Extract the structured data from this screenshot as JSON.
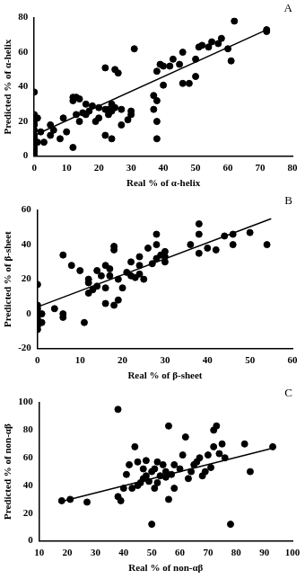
{
  "chart_data": [
    {
      "type": "scatter",
      "title": "A",
      "x_label": "Real % of α-helix",
      "y_label": "Predicted % of α-helix",
      "xlim": [
        0,
        80
      ],
      "ylim": [
        0,
        80
      ],
      "xticks": [
        0,
        10,
        20,
        30,
        40,
        50,
        60,
        70,
        80
      ],
      "yticks": [
        0,
        20,
        40,
        60,
        80
      ],
      "grid": false,
      "series": [
        {
          "type": "scatter",
          "color": "#000000",
          "marker": "circle",
          "x": [
            0,
            0,
            0,
            0,
            0,
            0,
            0,
            0,
            0,
            0,
            0,
            0,
            1,
            1,
            2,
            3,
            5,
            5,
            6,
            8,
            9,
            10,
            12,
            12,
            12,
            13,
            13,
            14,
            14,
            15,
            16,
            16,
            17,
            18,
            19,
            20,
            20,
            22,
            22,
            22,
            23,
            23,
            24,
            24,
            24,
            25,
            25,
            26,
            27,
            27,
            29,
            30,
            30,
            31,
            37,
            37,
            38,
            38,
            38,
            38,
            39,
            40,
            40,
            42,
            43,
            45,
            46,
            46,
            48,
            50,
            50,
            51,
            52,
            54,
            55,
            57,
            58,
            60,
            61,
            62,
            72,
            72
          ],
          "values": [
            37,
            24,
            22,
            20,
            18,
            15,
            12,
            10,
            8,
            5,
            3,
            1,
            22,
            8,
            14,
            8,
            18,
            12,
            15,
            10,
            22,
            14,
            5,
            32,
            34,
            34,
            24,
            33,
            20,
            25,
            24,
            30,
            26,
            29,
            20,
            22,
            28,
            51,
            27,
            12,
            24,
            27,
            10,
            26,
            30,
            50,
            28,
            48,
            18,
            27,
            21,
            26,
            24,
            62,
            35,
            27,
            49,
            20,
            10,
            32,
            53,
            41,
            52,
            52,
            56,
            53,
            60,
            42,
            42,
            46,
            56,
            63,
            64,
            63,
            66,
            65,
            68,
            62,
            55,
            78,
            73,
            72
          ]
        },
        {
          "type": "line",
          "color": "#000000",
          "line_style": "solid",
          "x": [
            0,
            72
          ],
          "values": [
            12,
            73
          ]
        }
      ]
    },
    {
      "type": "scatter",
      "title": "B",
      "x_label": "Real % of β-sheet",
      "y_label": "Predicted % of β-sheet",
      "xlim": [
        0,
        60
      ],
      "ylim": [
        -20,
        60
      ],
      "xticks": [
        0,
        10,
        20,
        30,
        40,
        50,
        60
      ],
      "yticks": [
        -20,
        0,
        20,
        40,
        60
      ],
      "grid": false,
      "series": [
        {
          "type": "scatter",
          "color": "#000000",
          "marker": "circle",
          "x": [
            0,
            0,
            0,
            0,
            0,
            0,
            0,
            0,
            0,
            1,
            1,
            4,
            6,
            6,
            6,
            8,
            10,
            11,
            12,
            12,
            12,
            13,
            14,
            14,
            15,
            16,
            16,
            16,
            17,
            17,
            18,
            18,
            18,
            19,
            19,
            20,
            21,
            22,
            22,
            23,
            24,
            24,
            24,
            25,
            26,
            27,
            28,
            28,
            28,
            29,
            30,
            30,
            30,
            36,
            38,
            38,
            38,
            40,
            42,
            44,
            46,
            46,
            50,
            54
          ],
          "values": [
            17,
            5,
            3,
            1,
            -1,
            -3,
            -5,
            -7,
            -9,
            0,
            -5,
            3,
            34,
            0,
            -2,
            28,
            25,
            -5,
            20,
            18,
            12,
            14,
            25,
            16,
            22,
            28,
            15,
            6,
            26,
            22,
            39,
            37,
            5,
            20,
            8,
            15,
            24,
            30,
            22,
            21,
            33,
            28,
            23,
            20,
            38,
            29,
            32,
            46,
            40,
            34,
            36,
            33,
            30,
            40,
            46,
            35,
            52,
            38,
            37,
            45,
            46,
            40,
            47,
            40
          ]
        },
        {
          "type": "line",
          "color": "#000000",
          "line_style": "solid",
          "x": [
            0,
            55
          ],
          "values": [
            4,
            55
          ]
        }
      ]
    },
    {
      "type": "scatter",
      "title": "C",
      "x_label": "Real % of non-αβ",
      "y_label": "Predicted % of non-αβ",
      "xlim": [
        10,
        100
      ],
      "ylim": [
        0,
        100
      ],
      "xticks": [
        10,
        20,
        30,
        40,
        50,
        60,
        70,
        80,
        90,
        100
      ],
      "yticks": [
        0,
        20,
        40,
        60,
        80,
        100
      ],
      "grid": false,
      "series": [
        {
          "type": "scatter",
          "color": "#000000",
          "marker": "circle",
          "x": [
            18,
            21,
            27,
            38,
            38,
            39,
            40,
            41,
            42,
            43,
            44,
            45,
            45,
            46,
            47,
            47,
            48,
            48,
            49,
            50,
            50,
            51,
            51,
            52,
            52,
            53,
            54,
            55,
            55,
            56,
            56,
            57,
            58,
            58,
            60,
            61,
            62,
            63,
            64,
            65,
            66,
            67,
            68,
            69,
            70,
            71,
            72,
            72,
            73,
            74,
            75,
            76,
            78,
            83,
            85,
            93
          ],
          "values": [
            29,
            30,
            28,
            32,
            95,
            29,
            38,
            48,
            55,
            38,
            68,
            40,
            57,
            42,
            45,
            52,
            47,
            58,
            43,
            12,
            50,
            38,
            52,
            42,
            57,
            47,
            55,
            46,
            50,
            30,
            83,
            48,
            38,
            55,
            52,
            62,
            75,
            45,
            50,
            55,
            57,
            60,
            47,
            50,
            62,
            53,
            80,
            68,
            83,
            63,
            70,
            60,
            12,
            70,
            50,
            68
          ]
        },
        {
          "type": "line",
          "color": "#000000",
          "line_style": "solid",
          "x": [
            17,
            93
          ],
          "values": [
            28,
            67
          ]
        }
      ]
    }
  ]
}
